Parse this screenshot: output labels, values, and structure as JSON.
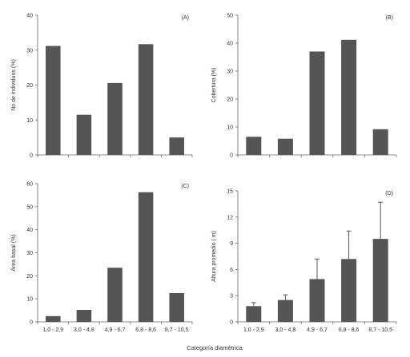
{
  "xlabel": "Categoría diamétrica",
  "bar_color": "#555555",
  "axis_color": "#666666",
  "chart_data": [
    {
      "type": "bar",
      "panel_label": "(A)",
      "ylabel": "No de individuos (%)",
      "categories": [
        "1,0 - 2,9",
        "3,0 - 4,8",
        "4,9 - 6,7",
        "6,8 - 8,6",
        "8,7 - 10,5"
      ],
      "values": [
        31.2,
        11.5,
        20.6,
        31.7,
        5.0
      ],
      "ylim": [
        0,
        40
      ],
      "yticks": [
        0,
        10,
        20,
        30,
        40
      ],
      "show_category_labels": false
    },
    {
      "type": "bar",
      "panel_label": "(B)",
      "ylabel": "Cobertura (%)",
      "categories": [
        "1,0 - 2,9",
        "3,0 - 4,8",
        "4,9 - 6,7",
        "6,8 - 8,6",
        "8,7 - 10,5"
      ],
      "values": [
        6.5,
        5.8,
        37.0,
        41.2,
        9.2
      ],
      "ylim": [
        0,
        50
      ],
      "yticks": [
        0,
        10,
        20,
        30,
        40,
        50
      ],
      "show_category_labels": false
    },
    {
      "type": "bar",
      "panel_label": "(C)",
      "ylabel": "Área basal (%)",
      "categories": [
        "1,0 - 2,9",
        "3,0 - 4,8",
        "4,9 - 6,7",
        "6,8 - 8,6",
        "8,7 - 10,5"
      ],
      "values": [
        2.5,
        5.2,
        23.5,
        56.3,
        12.5
      ],
      "ylim": [
        0,
        60
      ],
      "yticks": [
        0,
        10,
        20,
        30,
        40,
        50,
        60
      ],
      "show_category_labels": true
    },
    {
      "type": "bar",
      "panel_label": "(D)",
      "ylabel": "Altura promedio ( m)",
      "categories": [
        "1,0 - 2,9",
        "3,0 - 4,8",
        "4,9 - 6,7",
        "6,8 - 8,6",
        "8,7 - 10,5"
      ],
      "values": [
        1.8,
        2.5,
        4.9,
        7.2,
        9.5
      ],
      "error_upper": [
        2.2,
        3.1,
        7.2,
        10.4,
        13.7
      ],
      "ylim": [
        0,
        15
      ],
      "yticks": [
        0,
        3,
        6,
        9,
        12,
        15
      ],
      "show_category_labels": true
    }
  ]
}
